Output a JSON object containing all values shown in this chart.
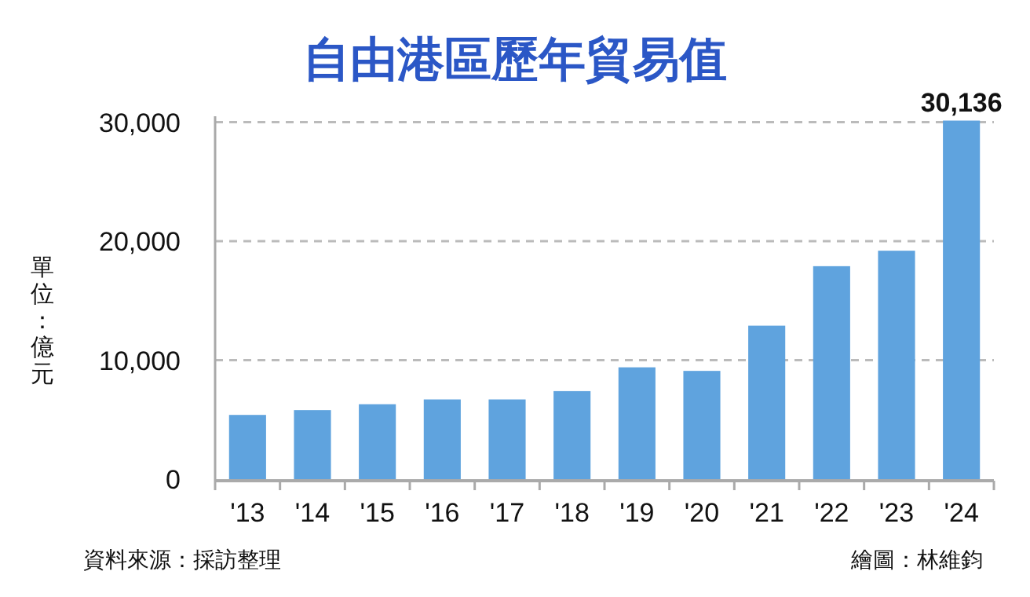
{
  "chart_data": {
    "type": "bar",
    "title": "自由港區歷年貿易值",
    "ylabel": "單位：億元",
    "categories": [
      "'13",
      "'14",
      "'15",
      "'16",
      "'17",
      "'18",
      "'19",
      "'20",
      "'21",
      "'22",
      "'23",
      "'24"
    ],
    "values": [
      5400,
      5800,
      6300,
      6700,
      6700,
      7400,
      9400,
      9100,
      12900,
      17900,
      19200,
      30136
    ],
    "value_labels": [
      null,
      null,
      null,
      null,
      null,
      null,
      null,
      null,
      null,
      null,
      null,
      "30,136"
    ],
    "color": "#5fa3de",
    "ylim": [
      0,
      30500
    ],
    "yticks": [
      {
        "value": 0,
        "label": "0"
      },
      {
        "value": 10000,
        "label": "10,000"
      },
      {
        "value": 20000,
        "label": "20,000"
      },
      {
        "value": 30000,
        "label": "30,000"
      }
    ],
    "grid": "y",
    "annotations": [
      "資料來源：採訪整理",
      "繪圖：林維鈞"
    ]
  }
}
